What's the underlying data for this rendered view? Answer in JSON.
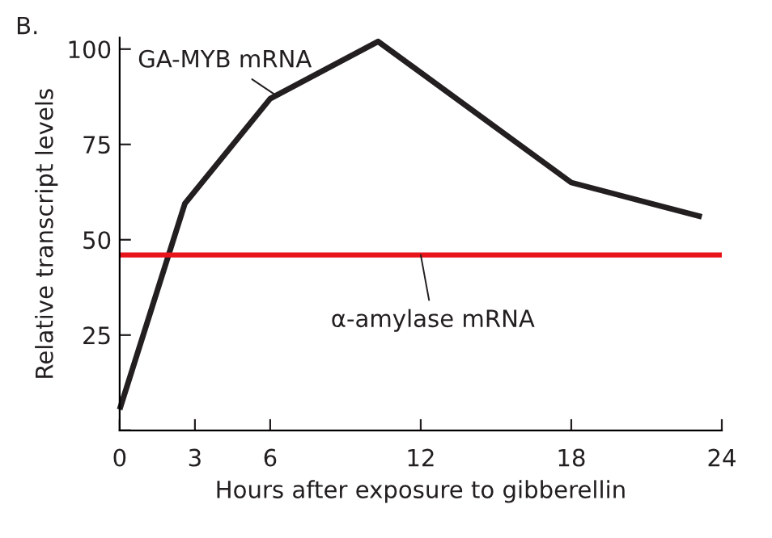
{
  "chart_data": {
    "type": "line",
    "xlabel": "Hours after exposure to gibberellin",
    "ylabel": "Relative transcript levels",
    "annotations": [
      "B.",
      {
        "text": "GA-MYB mRNA",
        "x": 6.2,
        "y": 88
      },
      {
        "text": "α-amylase mRNA",
        "x": 12,
        "y": 46
      }
    ],
    "series": [
      {
        "color": "#231f20",
        "x": [
          0,
          2.6,
          6,
          10.3,
          18,
          23.2
        ],
        "values": [
          5.5,
          59.5,
          87,
          102,
          65,
          56
        ]
      },
      {
        "color": "#e8141c",
        "x": [
          0,
          24
        ],
        "values": [
          46,
          46
        ]
      }
    ],
    "xlim": [
      0,
      24
    ],
    "ylim": [
      0,
      103
    ],
    "xticks": [
      0,
      3,
      6,
      12,
      18,
      24
    ],
    "yticks": [
      {
        "value": 0,
        "label": null
      },
      25,
      50,
      75,
      100
    ],
    "grid": false,
    "marker": "none",
    "line_style": "solid"
  }
}
